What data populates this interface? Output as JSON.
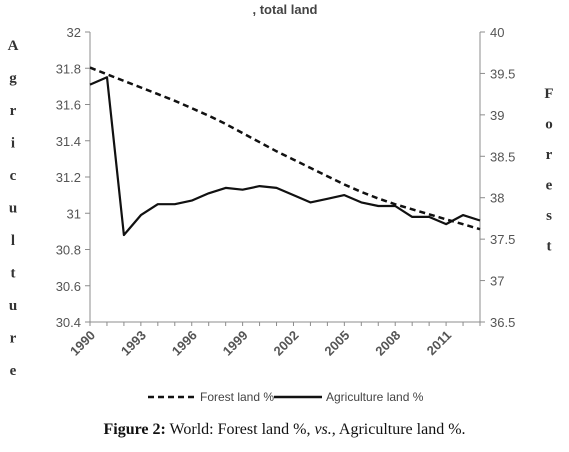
{
  "chart_data": {
    "type": "line",
    "title": ", total land",
    "x": [
      1990,
      1991,
      1992,
      1993,
      1994,
      1995,
      1996,
      1997,
      1998,
      1999,
      2000,
      2001,
      2002,
      2003,
      2004,
      2005,
      2006,
      2007,
      2008,
      2009,
      2010,
      2011,
      2012,
      2013
    ],
    "x_tick_labels": [
      "1990",
      "1993",
      "1996",
      "1999",
      "2002",
      "2005",
      "2008",
      "2011"
    ],
    "x_ticks": [
      1990,
      1993,
      1996,
      1999,
      2002,
      2005,
      2008,
      2011
    ],
    "xlim": [
      1990,
      2013
    ],
    "y_left": {
      "label_letters": [
        "A",
        "g",
        "r",
        "i",
        "c",
        "u",
        "l",
        "t",
        "u",
        "r",
        "e"
      ],
      "ylim": [
        30.4,
        32
      ],
      "tick_labels": [
        "32",
        "31.8",
        "31.6",
        "31.4",
        "31.2",
        "31",
        "30.8",
        "30.6",
        "30.4"
      ],
      "ticks": [
        32,
        31.8,
        31.6,
        31.4,
        31.2,
        31,
        30.8,
        30.6,
        30.4
      ]
    },
    "y_right": {
      "label_letters": [
        "F",
        "o",
        "r",
        "e",
        "s",
        "t"
      ],
      "ylim": [
        36.5,
        40
      ],
      "tick_labels": [
        "40",
        "39.5",
        "39",
        "38.5",
        "38",
        "37.5",
        "37",
        "36.5"
      ],
      "ticks": [
        40,
        39.5,
        39,
        38.5,
        38,
        37.5,
        37,
        36.5
      ]
    },
    "series": [
      {
        "name": "Forest land %",
        "axis": "right",
        "style": "dashed",
        "color": "#111111",
        "values": [
          39.57,
          39.49,
          39.41,
          39.33,
          39.25,
          39.17,
          39.08,
          38.99,
          38.89,
          38.78,
          38.67,
          38.56,
          38.46,
          38.36,
          38.26,
          38.16,
          38.07,
          37.99,
          37.92,
          37.86,
          37.8,
          37.74,
          37.68,
          37.62
        ]
      },
      {
        "name": "Agriculture land %",
        "axis": "left",
        "style": "solid",
        "color": "#111111",
        "values": [
          31.71,
          31.75,
          30.88,
          30.99,
          31.05,
          31.05,
          31.07,
          31.11,
          31.14,
          31.13,
          31.15,
          31.14,
          31.1,
          31.06,
          31.08,
          31.1,
          31.06,
          31.04,
          31.04,
          30.98,
          30.98,
          30.94,
          30.99,
          30.96
        ]
      }
    ],
    "legend_position": "bottom",
    "grid": false
  },
  "caption": {
    "label": "Figure 2:",
    "text_before": " World: Forest land %, ",
    "vs": "vs.",
    "text_after": ", Agriculture land %."
  }
}
